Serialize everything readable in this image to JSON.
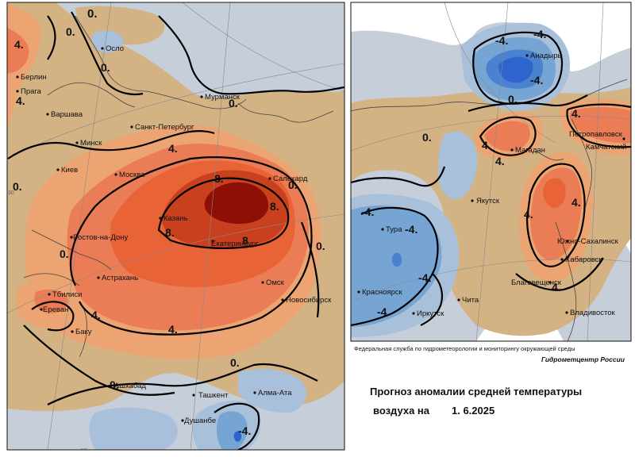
{
  "colors": {
    "neutral": "#c5ced9",
    "tan": "#d3b284",
    "orange_light": "#eca572",
    "orange": "#ea7d55",
    "red_orange": "#e86336",
    "red": "#c8401e",
    "dark_red": "#8e0f05",
    "blue_light": "#a9c0db",
    "blue": "#76a5d4",
    "blue_dark": "#4a82cf",
    "blue_deep": "#2f64cc",
    "land_white": "#ffffff"
  },
  "left_panel": {
    "cities": [
      {
        "id": "oslo",
        "label": "Осло"
      },
      {
        "id": "berlin",
        "label": "Берлин"
      },
      {
        "id": "praga",
        "label": "Прага"
      },
      {
        "id": "varshava",
        "label": "Варшава"
      },
      {
        "id": "murmansk",
        "label": "Мурманск"
      },
      {
        "id": "spb",
        "label": "Санкт-Петербург"
      },
      {
        "id": "minsk",
        "label": "Минск"
      },
      {
        "id": "kiev",
        "label": "Киев"
      },
      {
        "id": "moskva",
        "label": "Москва"
      },
      {
        "id": "salekhard",
        "label": "Салехард"
      },
      {
        "id": "kazan",
        "label": "Казань"
      },
      {
        "id": "ekb",
        "label": "Екатеринбург"
      },
      {
        "id": "rostov",
        "label": "Ростов-на-Дону"
      },
      {
        "id": "astrakhan",
        "label": "Астрахань"
      },
      {
        "id": "omsk",
        "label": "Омск"
      },
      {
        "id": "novosibirsk",
        "label": "Новосибирск"
      },
      {
        "id": "tbilisi",
        "label": "Тбилиси"
      },
      {
        "id": "erevan",
        "label": "Ереван"
      },
      {
        "id": "baku",
        "label": "Баку"
      },
      {
        "id": "ashgabat",
        "label": "Ашхабад"
      },
      {
        "id": "tashkent",
        "label": "Ташкент"
      },
      {
        "id": "almaty",
        "label": "Алма-Ата"
      },
      {
        "id": "dushanbe",
        "label": "Душанбе"
      }
    ],
    "isolines": [
      {
        "id": "l_0_top",
        "label": "0."
      },
      {
        "id": "l_0_top2",
        "label": "0."
      },
      {
        "id": "l_0_oslo",
        "label": "0."
      },
      {
        "id": "l_m4_west",
        "label": "4."
      },
      {
        "id": "l_m4_praga",
        "label": "4."
      },
      {
        "id": "l_0_murmansk",
        "label": "0."
      },
      {
        "id": "l_4_north",
        "label": "4."
      },
      {
        "id": "l_0_west",
        "label": "0."
      },
      {
        "id": "l_8_a",
        "label": "8."
      },
      {
        "id": "l_8_b",
        "label": "8."
      },
      {
        "id": "l_8_c",
        "label": "8."
      },
      {
        "id": "l_8_d",
        "label": "8"
      },
      {
        "id": "l_0_salekhard",
        "label": "0."
      },
      {
        "id": "l_0_east",
        "label": "0."
      },
      {
        "id": "l_0_sw",
        "label": "0."
      },
      {
        "id": "l_4_sw",
        "label": "4."
      },
      {
        "id": "l_4_south",
        "label": "4."
      },
      {
        "id": "l_0_south",
        "label": "0."
      },
      {
        "id": "l_0_ashgabat",
        "label": "0."
      },
      {
        "id": "l_m4_dushanbe",
        "label": "-4."
      }
    ],
    "grid_labels": [
      {
        "id": "g_30",
        "label": "30"
      },
      {
        "id": "g_50",
        "label": "50"
      }
    ]
  },
  "right_panel": {
    "cities": [
      {
        "id": "anadyr",
        "label": "Анадырь"
      },
      {
        "id": "petropavlovsk",
        "label": "Петропавловск"
      },
      {
        "id": "kamchatsky",
        "label": "Камчатский"
      },
      {
        "id": "magadan",
        "label": "Магадан"
      },
      {
        "id": "yakutsk",
        "label": "Якутск"
      },
      {
        "id": "tura",
        "label": "Тура"
      },
      {
        "id": "yuzhno",
        "label": "Южно-Сахалинск"
      },
      {
        "id": "khabarovsk",
        "label": "Хабаровск"
      },
      {
        "id": "blagoveshchensk",
        "label": "Благовещенск"
      },
      {
        "id": "krasnoyarsk",
        "label": "Красноярск"
      },
      {
        "id": "chita",
        "label": "Чита"
      },
      {
        "id": "irkutsk",
        "label": "Иркутск"
      },
      {
        "id": "vladivostok",
        "label": "Владивосток"
      }
    ],
    "isolines": [
      {
        "id": "r_m4_a",
        "label": "-4."
      },
      {
        "id": "r_m4_b",
        "label": "-4."
      },
      {
        "id": "r_m4_c",
        "label": "-4."
      },
      {
        "id": "r_0_a",
        "label": "0."
      },
      {
        "id": "r_0_b",
        "label": "0."
      },
      {
        "id": "r_4_a",
        "label": "4."
      },
      {
        "id": "r_4_b",
        "label": "4."
      },
      {
        "id": "r_4_c",
        "label": "4."
      },
      {
        "id": "r_4_d",
        "label": "4."
      },
      {
        "id": "r_m4_tura",
        "label": "-4."
      },
      {
        "id": "r_m4_tura2",
        "label": "-4."
      },
      {
        "id": "r_m4_d",
        "label": "-4."
      },
      {
        "id": "r_m4_e",
        "label": "-4."
      },
      {
        "id": "r_4_e",
        "label": "4."
      },
      {
        "id": "r_4_f",
        "label": "4."
      }
    ]
  },
  "footer": {
    "organization": "Федеральная служба по гидрометеорологии и мониторингу окружающей среды",
    "center": "Гидрометцентр России",
    "title_line1": "Прогноз аномалии средней температуры",
    "title_line2": "воздуха на",
    "date": "1. 6.2025"
  }
}
